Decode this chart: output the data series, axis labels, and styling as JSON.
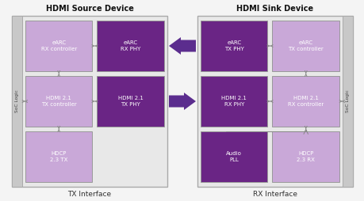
{
  "bg_color": "#f4f4f4",
  "title_left": "HDMI Source Device",
  "title_right": "HDMI Sink Device",
  "label_left": "TX Interface",
  "label_right": "RX Interface",
  "soc_label": "SoC Logic",
  "light_purple": "#c9a8d8",
  "dark_purple": "#6a2585",
  "arrow_color": "#5b2d8e",
  "soc_color": "#c8c8c8",
  "box_bg": "#e8e8e8",
  "box_edge": "#aaaaaa",
  "left_blocks": [
    {
      "label": "eARC\nRX controller",
      "color": "light",
      "col": 0,
      "row": 0
    },
    {
      "label": "eARC\nRX PHY",
      "color": "dark",
      "col": 1,
      "row": 0
    },
    {
      "label": "HDMI 2.1\nTX controller",
      "color": "light",
      "col": 0,
      "row": 1
    },
    {
      "label": "HDMI 2.1\nTX PHY",
      "color": "dark",
      "col": 1,
      "row": 1
    },
    {
      "label": "HDCP\n2.3 TX",
      "color": "light",
      "col": 0,
      "row": 2
    }
  ],
  "right_blocks": [
    {
      "label": "eARC\nTX PHY",
      "color": "dark",
      "col": 0,
      "row": 0
    },
    {
      "label": "eARC\nTX controller",
      "color": "light",
      "col": 1,
      "row": 0
    },
    {
      "label": "HDMI 2.1\nRX PHY",
      "color": "dark",
      "col": 0,
      "row": 1
    },
    {
      "label": "HDMI 2.1\nRX controller",
      "color": "light",
      "col": 1,
      "row": 1
    },
    {
      "label": "Audio\nPLL",
      "color": "dark",
      "col": 0,
      "row": 2
    },
    {
      "label": "HDCP\n2.3 RX",
      "color": "light",
      "col": 1,
      "row": 2
    }
  ]
}
